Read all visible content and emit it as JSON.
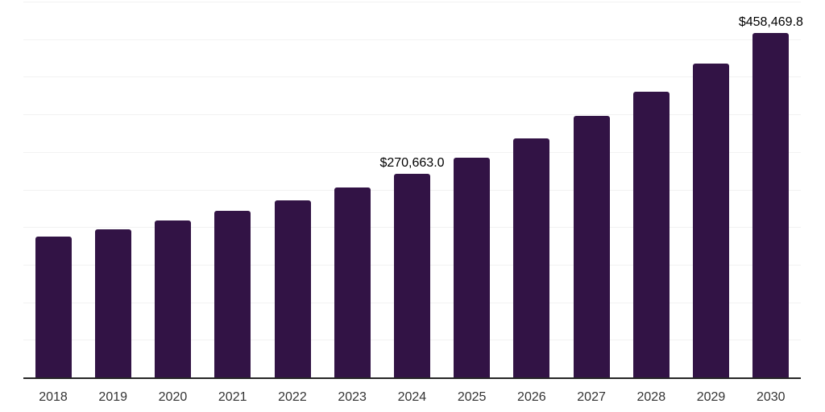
{
  "chart_data": {
    "type": "bar",
    "title": "",
    "xlabel": "",
    "ylabel": "",
    "categories": [
      "2018",
      "2019",
      "2020",
      "2021",
      "2022",
      "2023",
      "2024",
      "2025",
      "2026",
      "2027",
      "2028",
      "2029",
      "2030"
    ],
    "values": [
      187000,
      196600,
      208400,
      221300,
      235200,
      252400,
      270663.0,
      292400,
      318200,
      347900,
      380100,
      417700,
      458469.8
    ],
    "data_labels": {
      "2024": "$270,663.0",
      "2030": "$458,469.8"
    },
    "ylim": [
      0,
      500000
    ],
    "gridline_step": 50000,
    "grid": "horizontal",
    "legend": "none",
    "colors": {
      "bar": "#321345",
      "axis": "#262626",
      "gridline": "#f2f2f2",
      "tick_label": "#333333",
      "data_label": "#000000",
      "background": "#ffffff"
    }
  }
}
